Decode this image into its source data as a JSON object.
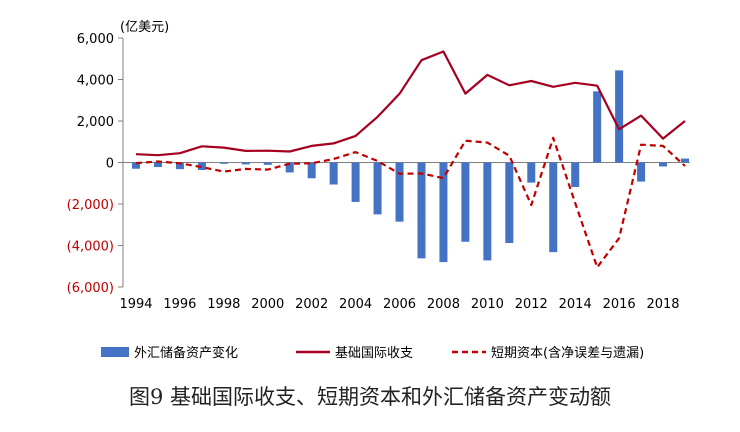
{
  "caption": "图9 基础国际收支、短期资本和外汇储备资产变动额",
  "colors": {
    "bar": "#4472c4",
    "basic": "#a50021",
    "short": "#c00000",
    "negative_tick": "#c00000"
  },
  "chart_data": {
    "type": "bar+line",
    "unit_label": "(亿美元)",
    "x": [
      1994,
      1995,
      1996,
      1997,
      1998,
      1999,
      2000,
      2001,
      2002,
      2003,
      2004,
      2005,
      2006,
      2007,
      2008,
      2009,
      2010,
      2011,
      2012,
      2013,
      2014,
      2015,
      2016,
      2017,
      2018,
      2019
    ],
    "x_tick_labels": [
      "1994",
      "1996",
      "1998",
      "2000",
      "2002",
      "2004",
      "2006",
      "2008",
      "2010",
      "2012",
      "2014",
      "2016",
      "2018"
    ],
    "ylim": [
      -6000,
      6000
    ],
    "y_ticks": [
      6000,
      4000,
      2000,
      0,
      -2000,
      -4000,
      -6000
    ],
    "y_tick_labels": [
      "6,000",
      "4,000",
      "2,000",
      "0",
      "(2,000)",
      "(4,000)",
      "(6,000)"
    ],
    "legend_position": "bottom",
    "series": [
      {
        "name": "外汇储备资产变化",
        "kind": "bar",
        "values": [
          -300,
          -220,
          -320,
          -360,
          -60,
          -90,
          -110,
          -480,
          -760,
          -1060,
          -1900,
          -2500,
          -2850,
          -4620,
          -4800,
          -3820,
          -4720,
          -3880,
          -970,
          -4320,
          -1180,
          3430,
          4440,
          -920,
          -190,
          190
        ]
      },
      {
        "name": "基础国际收支",
        "kind": "line",
        "values": [
          400,
          350,
          450,
          780,
          720,
          560,
          570,
          530,
          800,
          920,
          1280,
          2200,
          3310,
          4930,
          5350,
          3320,
          4220,
          3720,
          3930,
          3650,
          3840,
          3700,
          1600,
          2260,
          1150,
          2000
        ]
      },
      {
        "name": "短期资本(含净误差与遗漏)",
        "kind": "dashed-line",
        "values": [
          -30,
          50,
          -40,
          -220,
          -440,
          -310,
          -340,
          -60,
          -40,
          170,
          500,
          70,
          -540,
          -530,
          -750,
          1050,
          960,
          330,
          -2050,
          1190,
          -1950,
          -5050,
          -3650,
          860,
          800,
          -170
        ]
      }
    ]
  }
}
